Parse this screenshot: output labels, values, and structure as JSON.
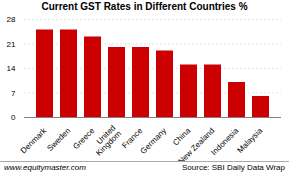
{
  "chart_data": {
    "type": "bar",
    "title": "Current GST Rates in Different Countries %",
    "categories": [
      "Denmark",
      "Sweden",
      "Greece",
      "United\nKingdom",
      "France",
      "Germany",
      "China",
      "New Zealand",
      "Indonesia",
      "Malaysia"
    ],
    "values": [
      25,
      25,
      23,
      20,
      20,
      19,
      15,
      15,
      10,
      6
    ],
    "color": "#cc0000",
    "ylim": [
      0,
      28
    ],
    "yticks": [
      0,
      7,
      14,
      21,
      28
    ],
    "grid": true,
    "annotations": [
      "www.equitymaster.com",
      "Source: SBI Daily Data Wrap"
    ]
  }
}
